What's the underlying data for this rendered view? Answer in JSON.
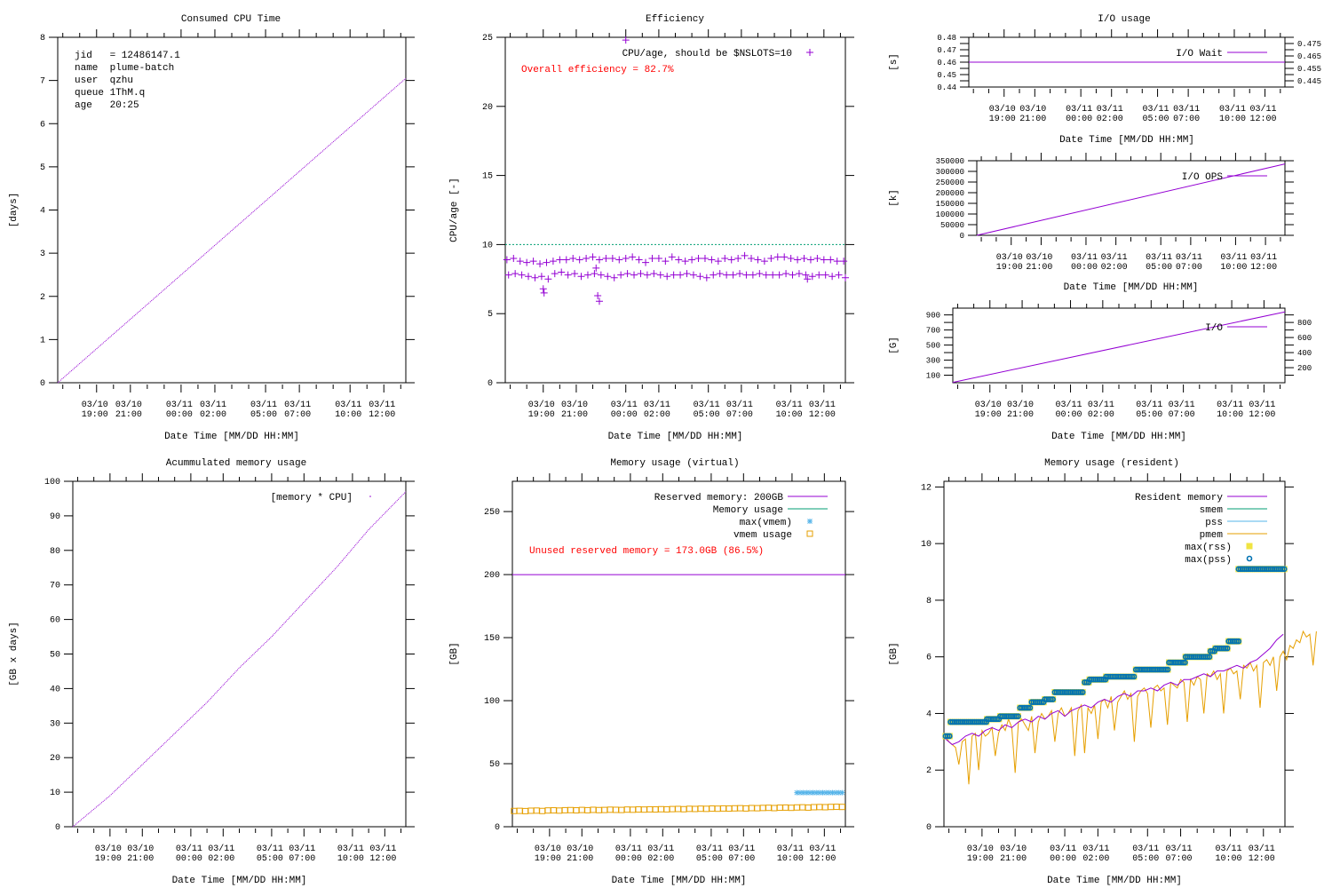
{
  "x_axis": {
    "label": "Date Time [MM/DD HH:MM]",
    "ticks": [
      19,
      21,
      24,
      26,
      29,
      31,
      34,
      36
    ],
    "tick_labels": [
      [
        "03/10",
        "19:00"
      ],
      [
        "03/10",
        "21:00"
      ],
      [
        "03/11",
        "00:00"
      ],
      [
        "03/11",
        "02:00"
      ],
      [
        "03/11",
        "05:00"
      ],
      [
        "03/11",
        "07:00"
      ],
      [
        "03/11",
        "10:00"
      ],
      [
        "03/11",
        "12:00"
      ]
    ],
    "unit": "hours since 03/10 00:00"
  },
  "colors": {
    "purple": "#9400d3",
    "green": "#009e73",
    "skyblue": "#56b4e9",
    "orange": "#e69f00",
    "yellow": "#f0e442",
    "blue": "#0072b2",
    "red": "#ff0000"
  },
  "chart_data": [
    {
      "id": "cpu",
      "type": "line",
      "title": "Consumed CPU Time",
      "ylabel": "[days]",
      "xlim": [
        16.7,
        37.3
      ],
      "ylim": [
        0,
        8
      ],
      "yticks": [
        0,
        1,
        2,
        3,
        4,
        5,
        6,
        7,
        8
      ],
      "info": [
        "jid   = 12486147.1",
        "name  plume-batch",
        "user  qzhu",
        "queue 1ThM.q",
        "age   20:25"
      ],
      "series": [
        {
          "name": "cpu",
          "kind": "line",
          "color": "#9400d3",
          "x": [
            16.7,
            37.3
          ],
          "y": [
            0,
            7.05
          ]
        }
      ],
      "legend": []
    },
    {
      "id": "eff",
      "type": "scatter",
      "title": "Efficiency",
      "ylabel": "CPU/age [-]",
      "xlim": [
        16.7,
        37.3
      ],
      "ylim": [
        0,
        25
      ],
      "yticks": [
        0,
        5,
        10,
        15,
        20,
        25
      ],
      "legend": [
        {
          "label": "CPU/age, should be $NSLOTS=10",
          "kind": "plus",
          "color": "#9400d3"
        }
      ],
      "annotation": {
        "text": "Overall efficiency = 82.7%",
        "color": "#ff0000"
      },
      "series": [
        {
          "name": "nslots",
          "kind": "dotted",
          "color": "#009e73",
          "x": [
            16.7,
            37.3
          ],
          "y": [
            10,
            10
          ]
        },
        {
          "name": "cpu/age high",
          "kind": "plus",
          "color": "#9400d3",
          "x_start": 16.8,
          "x_step": 0.4,
          "y": [
            8.9,
            9.0,
            8.8,
            8.7,
            8.8,
            8.6,
            8.7,
            8.8,
            8.9,
            8.9,
            9.0,
            8.9,
            9.0,
            9.1,
            8.9,
            9.0,
            9.0,
            8.9,
            9.0,
            9.1,
            8.9,
            8.7,
            9.0,
            9.0,
            8.8,
            9.1,
            8.9,
            8.8,
            8.9,
            9.0,
            9.0,
            8.9,
            8.8,
            9.0,
            8.9,
            9.0,
            9.2,
            9.0,
            8.9,
            8.8,
            9.0,
            9.1,
            9.1,
            9.0,
            8.9,
            9.0,
            8.9,
            9.0,
            8.9,
            8.9,
            8.8,
            8.8
          ]
        },
        {
          "name": "cpu/age low",
          "kind": "plus",
          "color": "#9400d3",
          "x_start": 16.9,
          "x_step": 0.4,
          "y": [
            7.8,
            7.9,
            7.8,
            7.7,
            7.6,
            7.7,
            7.5,
            7.9,
            8.0,
            7.8,
            7.9,
            7.7,
            7.8,
            7.9,
            7.8,
            7.7,
            7.6,
            7.8,
            7.9,
            7.8,
            7.9,
            7.8,
            7.9,
            7.8,
            7.7,
            7.8,
            7.8,
            7.9,
            7.8,
            7.7,
            7.6,
            7.8,
            7.9,
            7.8,
            7.8,
            7.9,
            7.8,
            7.8,
            7.9,
            7.8,
            7.8,
            7.8,
            7.9,
            7.8,
            7.9,
            7.8,
            7.7,
            7.8,
            7.8,
            7.7,
            7.8,
            7.6
          ]
        },
        {
          "name": "outliers",
          "kind": "plus",
          "color": "#9400d3",
          "x": [
            19.0,
            19.05,
            22.2,
            22.3,
            22.4,
            24.0,
            35.0
          ],
          "y": [
            6.8,
            6.5,
            8.3,
            6.3,
            5.9,
            24.8,
            7.5
          ]
        }
      ]
    },
    {
      "id": "iowait",
      "type": "line",
      "title": "I/O usage",
      "ylabel": "[s]",
      "xlim": [
        16.7,
        37.3
      ],
      "ylim": [
        0.44,
        0.48
      ],
      "yticks": [
        0.44,
        0.445,
        0.45,
        0.455,
        0.46,
        0.465,
        0.47,
        0.475,
        0.48
      ],
      "legend": [
        {
          "label": "I/O Wait",
          "kind": "line",
          "color": "#9400d3"
        }
      ],
      "series": [
        {
          "name": "I/O Wait",
          "kind": "line",
          "color": "#9400d3",
          "x": [
            16.7,
            37.3
          ],
          "y": [
            0.46,
            0.46
          ]
        }
      ]
    },
    {
      "id": "ioops",
      "type": "line",
      "title": "",
      "ylabel": "[k]",
      "xlim": [
        16.7,
        37.3
      ],
      "ylim": [
        0,
        350000
      ],
      "yticks": [
        0,
        50000,
        100000,
        150000,
        200000,
        250000,
        300000,
        350000
      ],
      "legend": [
        {
          "label": "I/O OPS",
          "kind": "line",
          "color": "#9400d3"
        }
      ],
      "series": [
        {
          "name": "I/O OPS",
          "kind": "line",
          "color": "#9400d3",
          "x": [
            16.7,
            37.3
          ],
          "y": [
            0,
            335000
          ]
        }
      ]
    },
    {
      "id": "io",
      "type": "line",
      "title": "",
      "ylabel": "[G]",
      "xlim": [
        16.7,
        37.3
      ],
      "ylim": [
        0,
        990
      ],
      "yticks": [
        100,
        200,
        300,
        400,
        500,
        600,
        700,
        800,
        900
      ],
      "legend": [
        {
          "label": "I/O",
          "kind": "line",
          "color": "#9400d3"
        }
      ],
      "series": [
        {
          "name": "I/O",
          "kind": "line",
          "color": "#9400d3",
          "x": [
            16.7,
            37.3
          ],
          "y": [
            5,
            940
          ]
        }
      ]
    },
    {
      "id": "accmem",
      "type": "line",
      "title": "Acummulated memory usage",
      "ylabel": "[GB x days]",
      "xlim": [
        16.7,
        37.3
      ],
      "ylim": [
        0,
        100
      ],
      "yticks": [
        0,
        10,
        20,
        30,
        40,
        50,
        60,
        70,
        80,
        90,
        100
      ],
      "legend": [
        {
          "label": "[memory * CPU]",
          "kind": "dot",
          "color": "#9400d3"
        }
      ],
      "series": [
        {
          "name": "[memory * CPU]",
          "kind": "line",
          "color": "#9400d3",
          "x": [
            16.7,
            19,
            21,
            23,
            25,
            27,
            29,
            31,
            33,
            35,
            37.3
          ],
          "y": [
            0,
            9,
            18,
            27,
            36,
            46,
            55,
            65,
            75,
            86,
            97
          ]
        }
      ]
    },
    {
      "id": "vmem",
      "type": "scatter",
      "title": "Memory usage (virtual)",
      "ylabel": "[GB]",
      "xlim": [
        16.7,
        37.3
      ],
      "ylim": [
        0,
        274
      ],
      "yticks": [
        0,
        50,
        100,
        150,
        200,
        250
      ],
      "legend": [
        {
          "label": "Reserved memory: 200GB",
          "kind": "line",
          "color": "#9400d3"
        },
        {
          "label": "Memory usage",
          "kind": "line",
          "color": "#009e73"
        },
        {
          "label": "max(vmem)",
          "kind": "star",
          "color": "#56b4e9"
        },
        {
          "label": "vmem usage",
          "kind": "box",
          "color": "#e69f00"
        }
      ],
      "annotation": {
        "text": "Unused reserved memory = 173.0GB (86.5%)",
        "color": "#ff0000"
      },
      "series": [
        {
          "name": "Reserved memory",
          "kind": "line",
          "color": "#9400d3",
          "x": [
            16.7,
            37.3
          ],
          "y": [
            200,
            200
          ]
        },
        {
          "name": "max(vmem)",
          "kind": "star",
          "color": "#56b4e9",
          "x_start": 34.3,
          "x_step": 0.2,
          "y": [
            27,
            27,
            27,
            27,
            27,
            27,
            27,
            27,
            27,
            27,
            27,
            27,
            27,
            27,
            27
          ]
        },
        {
          "name": "vmem usage",
          "kind": "box",
          "color": "#e69f00",
          "x_start": 16.8,
          "x_step": 0.35,
          "y": [
            12.5,
            12.6,
            12.4,
            12.7,
            12.8,
            12.5,
            12.9,
            13.0,
            12.8,
            13.1,
            13.2,
            13.0,
            13.3,
            13.1,
            13.4,
            13.2,
            13.3,
            13.5,
            13.4,
            13.3,
            13.6,
            13.5,
            13.7,
            13.6,
            13.8,
            13.7,
            13.9,
            13.8,
            14.0,
            14.1,
            13.9,
            14.2,
            14.1,
            14.3,
            14.2,
            14.4,
            14.3,
            14.5,
            14.4,
            14.6,
            14.7,
            14.5,
            14.8,
            14.7,
            14.9,
            15.0,
            14.8,
            15.1,
            15.2,
            15.0,
            15.3,
            15.4,
            15.2,
            15.5,
            15.6,
            15.5,
            15.7,
            15.8,
            15.7
          ]
        }
      ]
    },
    {
      "id": "rss",
      "type": "line",
      "title": "Memory usage (resident)",
      "ylabel": "[GB]",
      "xlim": [
        16.7,
        37.3
      ],
      "ylim": [
        0,
        12.2
      ],
      "yticks": [
        0,
        2,
        4,
        6,
        8,
        10,
        12
      ],
      "legend": [
        {
          "label": "Resident memory",
          "kind": "line",
          "color": "#9400d3"
        },
        {
          "label": "smem",
          "kind": "line",
          "color": "#009e73"
        },
        {
          "label": "pss",
          "kind": "line",
          "color": "#56b4e9"
        },
        {
          "label": "pmem",
          "kind": "line",
          "color": "#e69f00"
        },
        {
          "label": "max(rss)",
          "kind": "square",
          "color": "#f0e442"
        },
        {
          "label": "max(pss)",
          "kind": "ring",
          "color": "#0072b2"
        }
      ],
      "series": [
        {
          "name": "pmem",
          "kind": "line",
          "color": "#e69f00",
          "x_start": 16.8,
          "x_step": 0.2,
          "y": [
            3.2,
            3.0,
            2.9,
            2.8,
            2.2,
            3.0,
            3.1,
            1.5,
            3.2,
            3.3,
            2.0,
            3.4,
            3.2,
            3.3,
            3.5,
            2.5,
            3.3,
            3.6,
            3.4,
            3.8,
            3.5,
            1.9,
            3.7,
            3.8,
            3.6,
            3.4,
            3.9,
            2.6,
            3.7,
            4.0,
            3.8,
            3.9,
            4.1,
            3.0,
            4.0,
            4.2,
            3.9,
            4.0,
            4.2,
            2.5,
            4.1,
            4.3,
            2.6,
            4.2,
            4.0,
            4.3,
            3.1,
            4.4,
            4.5,
            4.2,
            4.6,
            3.4,
            4.4,
            4.6,
            4.8,
            4.5,
            4.7,
            3.0,
            4.6,
            4.8,
            4.9,
            4.7,
            3.5,
            4.9,
            5.0,
            4.8,
            4.9,
            3.6,
            5.1,
            5.0,
            4.9,
            5.2,
            5.1,
            3.7,
            5.2,
            5.0,
            5.3,
            5.2,
            4.0,
            5.4,
            5.3,
            5.5,
            5.2,
            5.4,
            4.0,
            5.5,
            5.6,
            5.4,
            5.5,
            4.5,
            5.7,
            5.6,
            5.8,
            5.5,
            5.7,
            4.2,
            5.8,
            5.9,
            5.7,
            6.0,
            4.8,
            6.0,
            6.2,
            5.9,
            6.4,
            6.3,
            6.6,
            6.5,
            6.9,
            6.7,
            6.8,
            5.7,
            6.9
          ]
        },
        {
          "name": "Resident memory",
          "kind": "line",
          "color": "#9400d3",
          "x_start": 16.8,
          "x_step": 0.4,
          "y": [
            3.1,
            2.9,
            3.0,
            3.2,
            3.3,
            3.2,
            3.4,
            3.5,
            3.4,
            3.6,
            3.5,
            3.7,
            3.8,
            3.7,
            3.9,
            3.8,
            4.0,
            4.1,
            3.9,
            4.1,
            4.2,
            4.3,
            4.2,
            4.4,
            4.5,
            4.4,
            4.6,
            4.7,
            4.6,
            4.8,
            4.8,
            4.9,
            4.8,
            5.0,
            5.1,
            5.0,
            5.2,
            5.2,
            5.3,
            5.4,
            5.3,
            5.5,
            5.5,
            5.6,
            5.7,
            5.6,
            5.8,
            5.9,
            6.1,
            6.3,
            6.6,
            6.8
          ]
        },
        {
          "name": "max(rss)",
          "kind": "square",
          "color": "#f0e442",
          "steps": [
            [
              16.8,
              3.2
            ],
            [
              17.1,
              3.7
            ],
            [
              19.3,
              3.8
            ],
            [
              20.1,
              3.9
            ],
            [
              21.3,
              4.2
            ],
            [
              22.0,
              4.4
            ],
            [
              22.8,
              4.5
            ],
            [
              23.4,
              4.75
            ],
            [
              25.2,
              5.1
            ],
            [
              25.5,
              5.2
            ],
            [
              26.5,
              5.3
            ],
            [
              28.3,
              5.55
            ],
            [
              30.3,
              5.8
            ],
            [
              31.3,
              6.0
            ],
            [
              32.8,
              6.2
            ],
            [
              33.1,
              6.3
            ],
            [
              33.9,
              6.55
            ],
            [
              34.5,
              9.1
            ],
            [
              37.3,
              9.1
            ]
          ]
        },
        {
          "name": "max(pss)",
          "kind": "ring",
          "color": "#0072b2",
          "steps": [
            [
              16.8,
              3.2
            ],
            [
              17.1,
              3.7
            ],
            [
              19.3,
              3.8
            ],
            [
              20.1,
              3.9
            ],
            [
              21.3,
              4.2
            ],
            [
              22.0,
              4.4
            ],
            [
              22.8,
              4.5
            ],
            [
              23.4,
              4.75
            ],
            [
              25.2,
              5.1
            ],
            [
              25.5,
              5.2
            ],
            [
              26.5,
              5.3
            ],
            [
              28.3,
              5.55
            ],
            [
              30.3,
              5.8
            ],
            [
              31.3,
              6.0
            ],
            [
              32.8,
              6.2
            ],
            [
              33.1,
              6.3
            ],
            [
              33.9,
              6.55
            ],
            [
              34.5,
              9.1
            ],
            [
              37.3,
              9.1
            ]
          ]
        }
      ]
    }
  ]
}
